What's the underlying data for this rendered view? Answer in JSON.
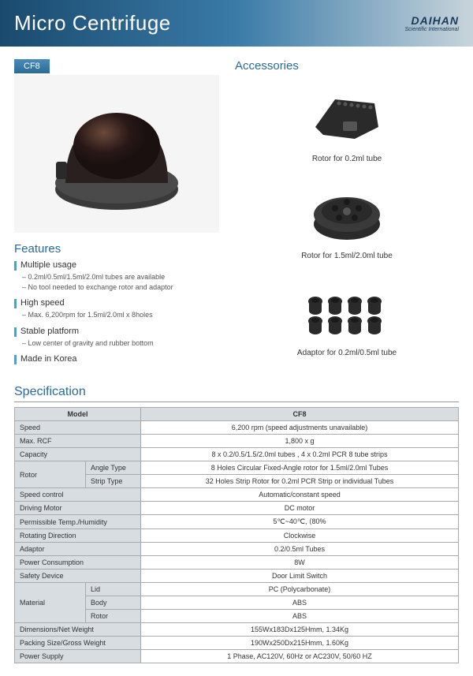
{
  "header": {
    "title": "Micro Centrifuge",
    "brand": "DAIHAN",
    "brand_sub": "Scientific International"
  },
  "product": {
    "badge": "CF8"
  },
  "accessories": {
    "title": "Accessories",
    "items": [
      {
        "label": "Rotor for 0.2ml tube"
      },
      {
        "label": "Rotor for 1.5ml/2.0ml tube"
      },
      {
        "label": "Adaptor for 0.2ml/0.5ml tube"
      }
    ]
  },
  "features": {
    "title": "Features",
    "items": [
      {
        "title": "Multiple usage",
        "bullets": [
          "0.2ml/0.5ml/1.5ml/2.0ml tubes are available",
          "No tool needed to exchange rotor and adaptor"
        ]
      },
      {
        "title": "High speed",
        "bullets": [
          "Max. 6,200rpm for 1.5ml/2.0ml x 8holes"
        ]
      },
      {
        "title": "Stable platform",
        "bullets": [
          "Low center of gravity and rubber bottom"
        ]
      },
      {
        "title": "Made in Korea",
        "bullets": []
      }
    ]
  },
  "spec": {
    "title": "Specification",
    "header_model": "Model",
    "header_value": "CF8",
    "rows": [
      {
        "label": "Speed",
        "value": "6,200 rpm (speed adjustments unavailable)"
      },
      {
        "label": "Max. RCF",
        "value": "1,800 x g"
      },
      {
        "label": "Capacity",
        "value": "8 x 0.2/0.5/1.5/2.0ml tubes , 4 x 0.2ml PCR 8 tube strips"
      }
    ],
    "rotor": {
      "label": "Rotor",
      "angle_label": "Angle Type",
      "angle_value": "8 Holes Circular Fixed-Angle rotor for 1.5ml/2.0ml Tubes",
      "strip_label": "Strip Type",
      "strip_value": "32 Holes Strip Rotor for 0.2ml PCR Strip or individual Tubes"
    },
    "rows2": [
      {
        "label": "Speed control",
        "value": "Automatic/constant speed"
      },
      {
        "label": "Driving Motor",
        "value": "DC motor"
      },
      {
        "label": "Permissible Temp./Humidity",
        "value": "5℃~40℃, ⟨80%"
      },
      {
        "label": "Rotating Direction",
        "value": "Clockwise"
      },
      {
        "label": "Adaptor",
        "value": "0.2/0.5ml Tubes"
      },
      {
        "label": "Power Consumption",
        "value": "8W"
      },
      {
        "label": "Safety Device",
        "value": "Door Limit Switch"
      }
    ],
    "material": {
      "label": "Material",
      "lid_label": "Lid",
      "lid_value": "PC (Polycarbonate)",
      "body_label": "Body",
      "body_value": "ABS",
      "rotor_label": "Rotor",
      "rotor_value": "ABS"
    },
    "rows3": [
      {
        "label": "Dimensions/Net Weight",
        "value": "155Wx183Dx125Hmm, 1.34Kg"
      },
      {
        "label": "Packing Size/Gross Weight",
        "value": "190Wx250Dx215Hmm, 1.60Kg"
      },
      {
        "label": "Power Supply",
        "value": "1 Phase, AC120V, 60Hz or AC230V, 50/60 HZ"
      }
    ]
  },
  "colors": {
    "accent": "#2a6b98",
    "bg_header": "#d8dde2",
    "border": "#aaaaaa"
  }
}
